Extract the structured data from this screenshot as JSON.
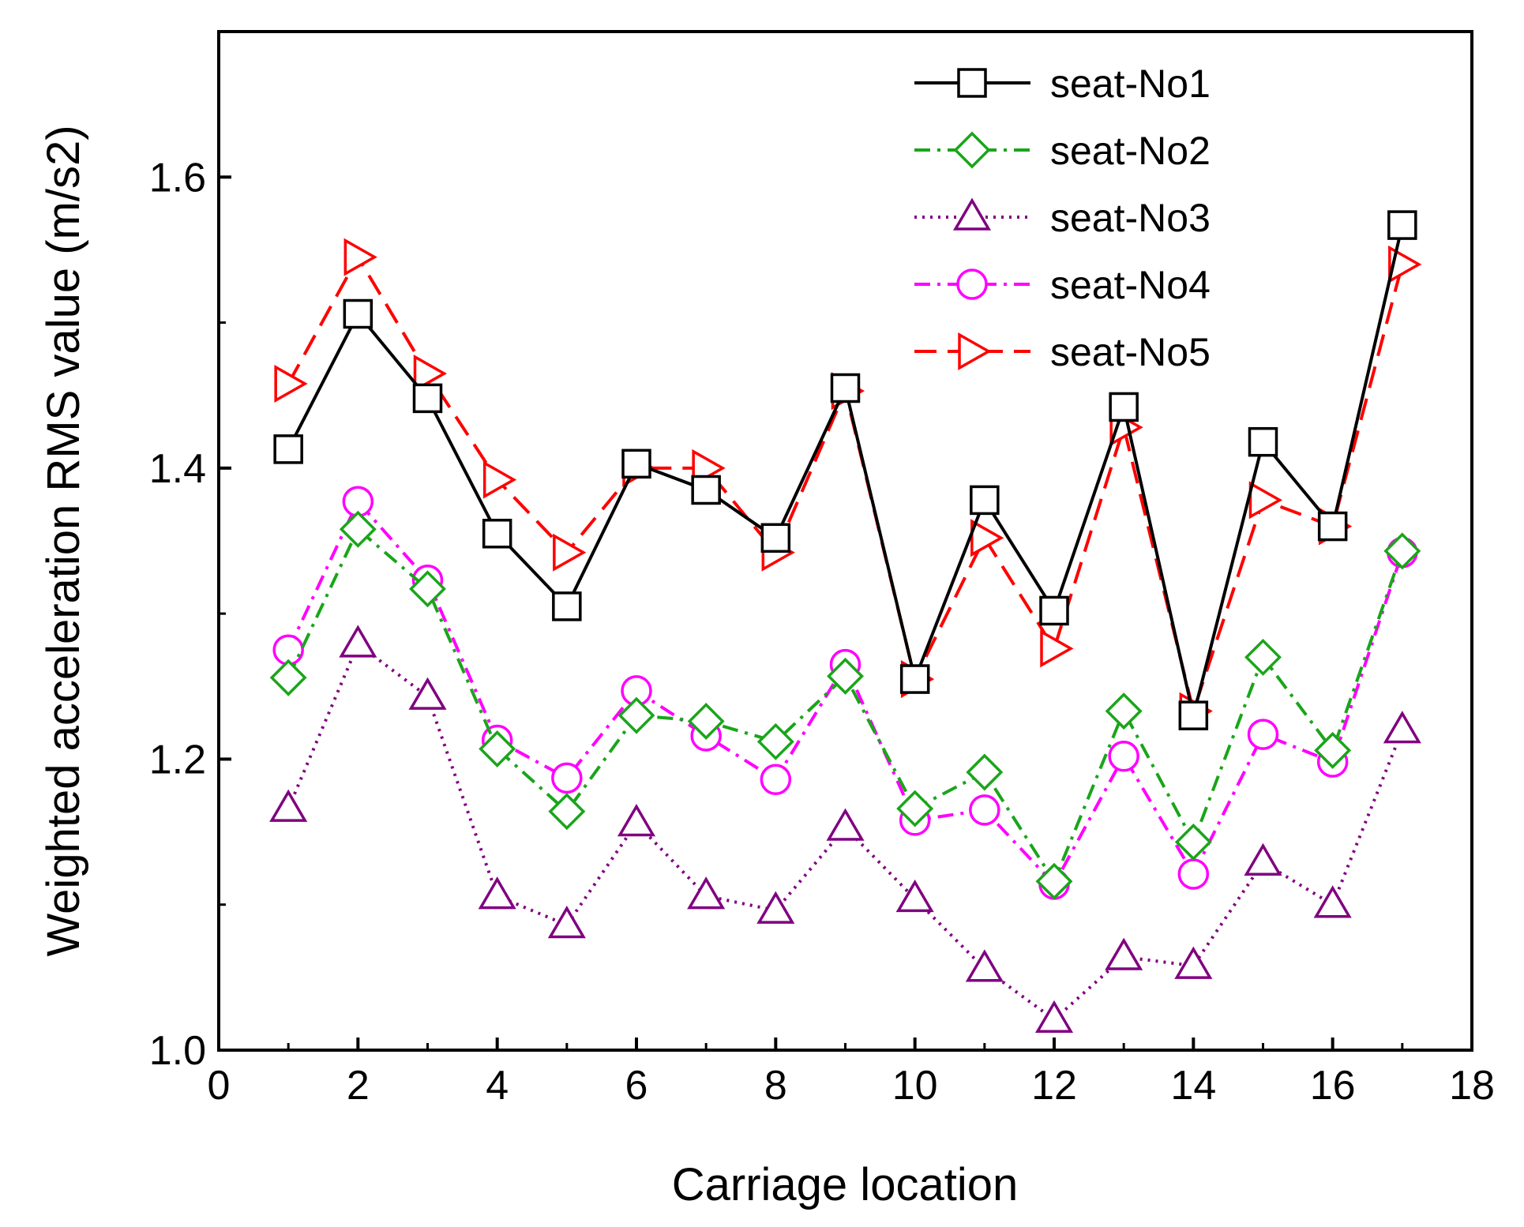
{
  "chart_data": {
    "type": "line",
    "title": "",
    "xlabel": "Carriage location",
    "ylabel": "Weighted acceleration RMS value (m/s2)",
    "xlim": [
      0,
      18
    ],
    "ylim": [
      1.0,
      1.7
    ],
    "xticks": [
      "0",
      "2",
      "4",
      "6",
      "8",
      "10",
      "12",
      "14",
      "16",
      "18"
    ],
    "yticks": [
      "1.0",
      "1.2",
      "1.4",
      "1.6"
    ],
    "legend_position": "top-right",
    "x": [
      1,
      2,
      3,
      4,
      5,
      6,
      7,
      8,
      9,
      10,
      11,
      12,
      13,
      14,
      15,
      16,
      17
    ],
    "series": [
      {
        "name": "seat-No1",
        "color": "#000000",
        "marker": "square",
        "line_style": "solid",
        "values": [
          1.413,
          1.506,
          1.448,
          1.355,
          1.305,
          1.403,
          1.385,
          1.352,
          1.455,
          1.255,
          1.378,
          1.302,
          1.442,
          1.23,
          1.418,
          1.36,
          1.567
        ]
      },
      {
        "name": "seat-No2",
        "color": "#1aa51a",
        "marker": "diamond",
        "line_style": "dash-dot",
        "values": [
          1.256,
          1.358,
          1.317,
          1.207,
          1.164,
          1.23,
          1.226,
          1.212,
          1.257,
          1.166,
          1.191,
          1.116,
          1.233,
          1.143,
          1.27,
          1.206,
          1.343
        ]
      },
      {
        "name": "seat-No3",
        "color": "#800080",
        "marker": "triangle-up",
        "line_style": "dotted",
        "values": [
          1.166,
          1.279,
          1.243,
          1.106,
          1.086,
          1.156,
          1.106,
          1.096,
          1.153,
          1.104,
          1.056,
          1.021,
          1.064,
          1.058,
          1.129,
          1.1,
          1.22
        ]
      },
      {
        "name": "seat-No4",
        "color": "#ff00ff",
        "marker": "circle",
        "line_style": "dash-dot",
        "values": [
          1.275,
          1.377,
          1.323,
          1.213,
          1.187,
          1.247,
          1.216,
          1.186,
          1.265,
          1.158,
          1.165,
          1.114,
          1.202,
          1.121,
          1.217,
          1.198,
          1.342
        ]
      },
      {
        "name": "seat-No5",
        "color": "#ff0000",
        "marker": "triangle-right",
        "line_style": "dashed",
        "values": [
          1.458,
          1.545,
          1.465,
          1.392,
          1.342,
          1.4,
          1.4,
          1.342,
          1.453,
          1.255,
          1.352,
          1.276,
          1.428,
          1.233,
          1.378,
          1.36,
          1.54
        ]
      }
    ]
  }
}
